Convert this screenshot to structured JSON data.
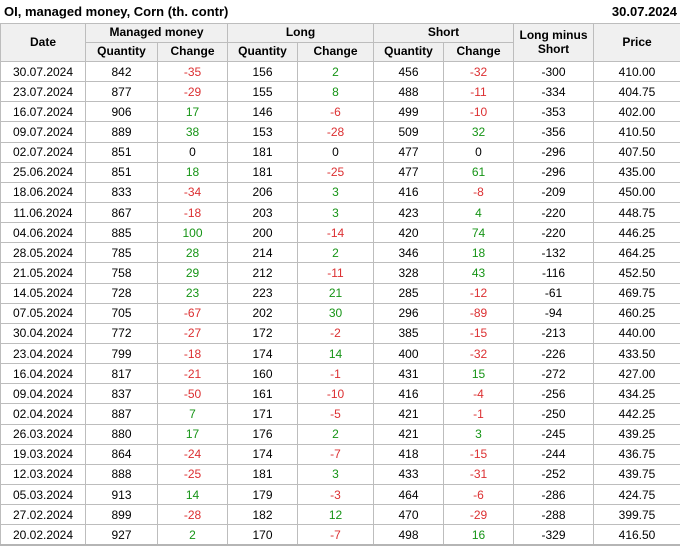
{
  "title": "OI, managed money, Corn (th. contr)",
  "report_date": "30.07.2024",
  "colors": {
    "positive": "#169416",
    "negative": "#dc3032",
    "text": "#000000",
    "header_bg": "#f0f0f0",
    "border": "#bdbdbd"
  },
  "header": {
    "date": "Date",
    "groups": [
      {
        "label": "Managed money"
      },
      {
        "label": "Long"
      },
      {
        "label": "Short"
      }
    ],
    "quantity": "Quantity",
    "change": "Change",
    "long_minus_short": "Long minus Short",
    "price": "Price"
  },
  "chart_data": {
    "type": "table",
    "title": "OI, managed money, Corn (th. contr)",
    "columns": [
      "Date",
      "Managed money Quantity",
      "Managed money Change",
      "Long Quantity",
      "Long Change",
      "Short Quantity",
      "Short Change",
      "Long minus Short",
      "Price"
    ]
  },
  "rows": [
    {
      "date": "30.07.2024",
      "mm_qty": "842",
      "mm_chg": "-35",
      "long_qty": "156",
      "long_chg": "2",
      "short_qty": "456",
      "short_chg": "-32",
      "lms": "-300",
      "price": "410.00"
    },
    {
      "date": "23.07.2024",
      "mm_qty": "877",
      "mm_chg": "-29",
      "long_qty": "155",
      "long_chg": "8",
      "short_qty": "488",
      "short_chg": "-11",
      "lms": "-334",
      "price": "404.75"
    },
    {
      "date": "16.07.2024",
      "mm_qty": "906",
      "mm_chg": "17",
      "long_qty": "146",
      "long_chg": "-6",
      "short_qty": "499",
      "short_chg": "-10",
      "lms": "-353",
      "price": "402.00"
    },
    {
      "date": "09.07.2024",
      "mm_qty": "889",
      "mm_chg": "38",
      "long_qty": "153",
      "long_chg": "-28",
      "short_qty": "509",
      "short_chg": "32",
      "lms": "-356",
      "price": "410.50"
    },
    {
      "date": "02.07.2024",
      "mm_qty": "851",
      "mm_chg": "0",
      "long_qty": "181",
      "long_chg": "0",
      "short_qty": "477",
      "short_chg": "0",
      "lms": "-296",
      "price": "407.50"
    },
    {
      "date": "25.06.2024",
      "mm_qty": "851",
      "mm_chg": "18",
      "long_qty": "181",
      "long_chg": "-25",
      "short_qty": "477",
      "short_chg": "61",
      "lms": "-296",
      "price": "435.00"
    },
    {
      "date": "18.06.2024",
      "mm_qty": "833",
      "mm_chg": "-34",
      "long_qty": "206",
      "long_chg": "3",
      "short_qty": "416",
      "short_chg": "-8",
      "lms": "-209",
      "price": "450.00"
    },
    {
      "date": "11.06.2024",
      "mm_qty": "867",
      "mm_chg": "-18",
      "long_qty": "203",
      "long_chg": "3",
      "short_qty": "423",
      "short_chg": "4",
      "lms": "-220",
      "price": "448.75"
    },
    {
      "date": "04.06.2024",
      "mm_qty": "885",
      "mm_chg": "100",
      "long_qty": "200",
      "long_chg": "-14",
      "short_qty": "420",
      "short_chg": "74",
      "lms": "-220",
      "price": "446.25"
    },
    {
      "date": "28.05.2024",
      "mm_qty": "785",
      "mm_chg": "28",
      "long_qty": "214",
      "long_chg": "2",
      "short_qty": "346",
      "short_chg": "18",
      "lms": "-132",
      "price": "464.25"
    },
    {
      "date": "21.05.2024",
      "mm_qty": "758",
      "mm_chg": "29",
      "long_qty": "212",
      "long_chg": "-11",
      "short_qty": "328",
      "short_chg": "43",
      "lms": "-116",
      "price": "452.50"
    },
    {
      "date": "14.05.2024",
      "mm_qty": "728",
      "mm_chg": "23",
      "long_qty": "223",
      "long_chg": "21",
      "short_qty": "285",
      "short_chg": "-12",
      "lms": "-61",
      "price": "469.75"
    },
    {
      "date": "07.05.2024",
      "mm_qty": "705",
      "mm_chg": "-67",
      "long_qty": "202",
      "long_chg": "30",
      "short_qty": "296",
      "short_chg": "-89",
      "lms": "-94",
      "price": "460.25"
    },
    {
      "date": "30.04.2024",
      "mm_qty": "772",
      "mm_chg": "-27",
      "long_qty": "172",
      "long_chg": "-2",
      "short_qty": "385",
      "short_chg": "-15",
      "lms": "-213",
      "price": "440.00"
    },
    {
      "date": "23.04.2024",
      "mm_qty": "799",
      "mm_chg": "-18",
      "long_qty": "174",
      "long_chg": "14",
      "short_qty": "400",
      "short_chg": "-32",
      "lms": "-226",
      "price": "433.50"
    },
    {
      "date": "16.04.2024",
      "mm_qty": "817",
      "mm_chg": "-21",
      "long_qty": "160",
      "long_chg": "-1",
      "short_qty": "431",
      "short_chg": "15",
      "lms": "-272",
      "price": "427.00"
    },
    {
      "date": "09.04.2024",
      "mm_qty": "837",
      "mm_chg": "-50",
      "long_qty": "161",
      "long_chg": "-10",
      "short_qty": "416",
      "short_chg": "-4",
      "lms": "-256",
      "price": "434.25"
    },
    {
      "date": "02.04.2024",
      "mm_qty": "887",
      "mm_chg": "7",
      "long_qty": "171",
      "long_chg": "-5",
      "short_qty": "421",
      "short_chg": "-1",
      "lms": "-250",
      "price": "442.25"
    },
    {
      "date": "26.03.2024",
      "mm_qty": "880",
      "mm_chg": "17",
      "long_qty": "176",
      "long_chg": "2",
      "short_qty": "421",
      "short_chg": "3",
      "lms": "-245",
      "price": "439.25"
    },
    {
      "date": "19.03.2024",
      "mm_qty": "864",
      "mm_chg": "-24",
      "long_qty": "174",
      "long_chg": "-7",
      "short_qty": "418",
      "short_chg": "-15",
      "lms": "-244",
      "price": "436.75"
    },
    {
      "date": "12.03.2024",
      "mm_qty": "888",
      "mm_chg": "-25",
      "long_qty": "181",
      "long_chg": "3",
      "short_qty": "433",
      "short_chg": "-31",
      "lms": "-252",
      "price": "439.75"
    },
    {
      "date": "05.03.2024",
      "mm_qty": "913",
      "mm_chg": "14",
      "long_qty": "179",
      "long_chg": "-3",
      "short_qty": "464",
      "short_chg": "-6",
      "lms": "-286",
      "price": "424.75"
    },
    {
      "date": "27.02.2024",
      "mm_qty": "899",
      "mm_chg": "-28",
      "long_qty": "182",
      "long_chg": "12",
      "short_qty": "470",
      "short_chg": "-29",
      "lms": "-288",
      "price": "399.75"
    },
    {
      "date": "20.02.2024",
      "mm_qty": "927",
      "mm_chg": "2",
      "long_qty": "170",
      "long_chg": "-7",
      "short_qty": "498",
      "short_chg": "16",
      "lms": "-329",
      "price": "416.50"
    }
  ]
}
